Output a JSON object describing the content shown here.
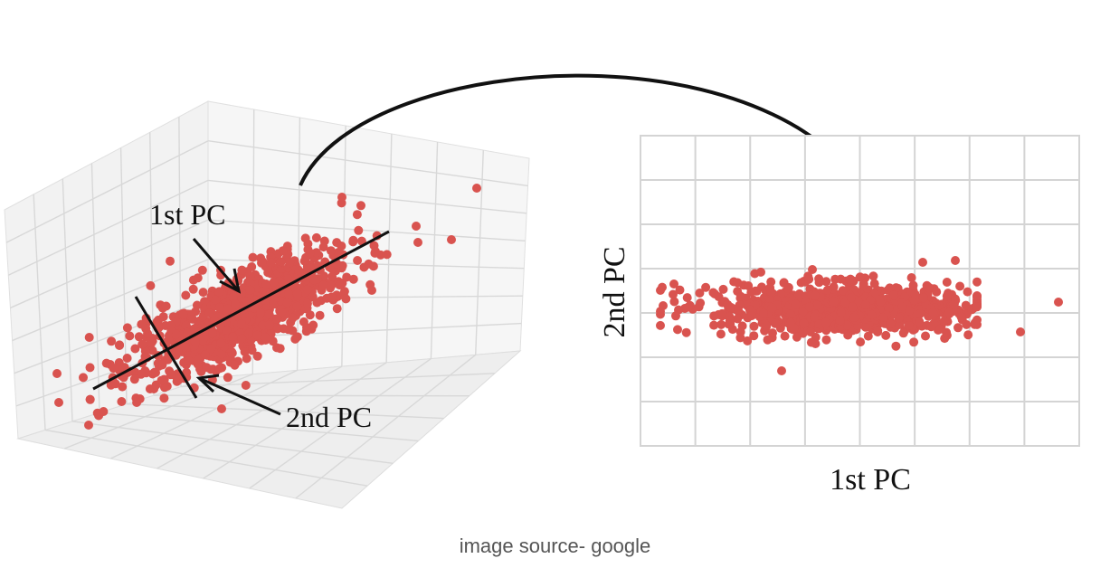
{
  "figure": {
    "left_panel": {
      "label_first_pc": "1st PC",
      "label_second_pc": "2nd PC"
    },
    "right_panel": {
      "xlabel": "1st PC",
      "ylabel": "2nd PC"
    },
    "caption": "image source- google",
    "colors": {
      "point": "#d9534f",
      "grid": "#d6d6d6",
      "axis_line": "#111111"
    }
  }
}
